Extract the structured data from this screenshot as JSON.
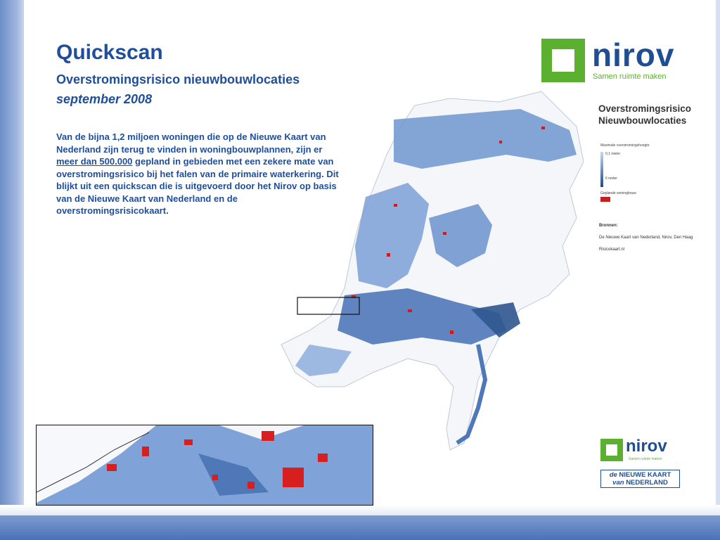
{
  "slide": {
    "title": "Quickscan",
    "subtitle": "Overstromingsrisico nieuwbouwlocaties",
    "date": "september 2008",
    "body_part1": "Van de bijna 1,2 miljoen woningen die op de Nieuwe Kaart van Nederland zijn terug te vinden in woningbouwplannen, zijn er ",
    "body_link": "meer dan 500.000",
    "body_part2": " gepland in gebieden met een zekere mate van overstromingsrisico bij het falen van de primaire waterkering. Dit blijkt uit een quickscan die is uitgevoerd door het Nirov op basis van de Nieuwe Kaart van Nederland en de overstromingsrisicokaart."
  },
  "logo_top": {
    "word": "nirov",
    "tagline": "Samen ruimte maken"
  },
  "legend": {
    "title_line1": "Overstromingsrisico",
    "title_line2": "Nieuwbouwlocaties",
    "scale_label": "Maximale overstromingshoogte",
    "scale_top": "0,1 meter",
    "scale_bottom": "6 meter",
    "planned_label": "Geplande woningbouw"
  },
  "sources": {
    "heading": "Bronnen:",
    "line1": "De Nieuwe Kaart van Nederland, Nirov, Den Haag",
    "line2": "Risicokaart.nl"
  },
  "logo_bottom": {
    "word": "nirov",
    "tagline": "Samen ruimte maken",
    "nkn_line1_prefix": "de",
    "nkn_line1": "NIEUWE KAART",
    "nkn_line2_prefix": "van",
    "nkn_line2": "NEDERLAND"
  },
  "colors": {
    "title_blue": "#1e4e9c",
    "flood_light": "#c7d8ee",
    "flood_dark": "#1e4c8a",
    "planned_red": "#c81e1e",
    "nirov_green": "#5cb030"
  }
}
